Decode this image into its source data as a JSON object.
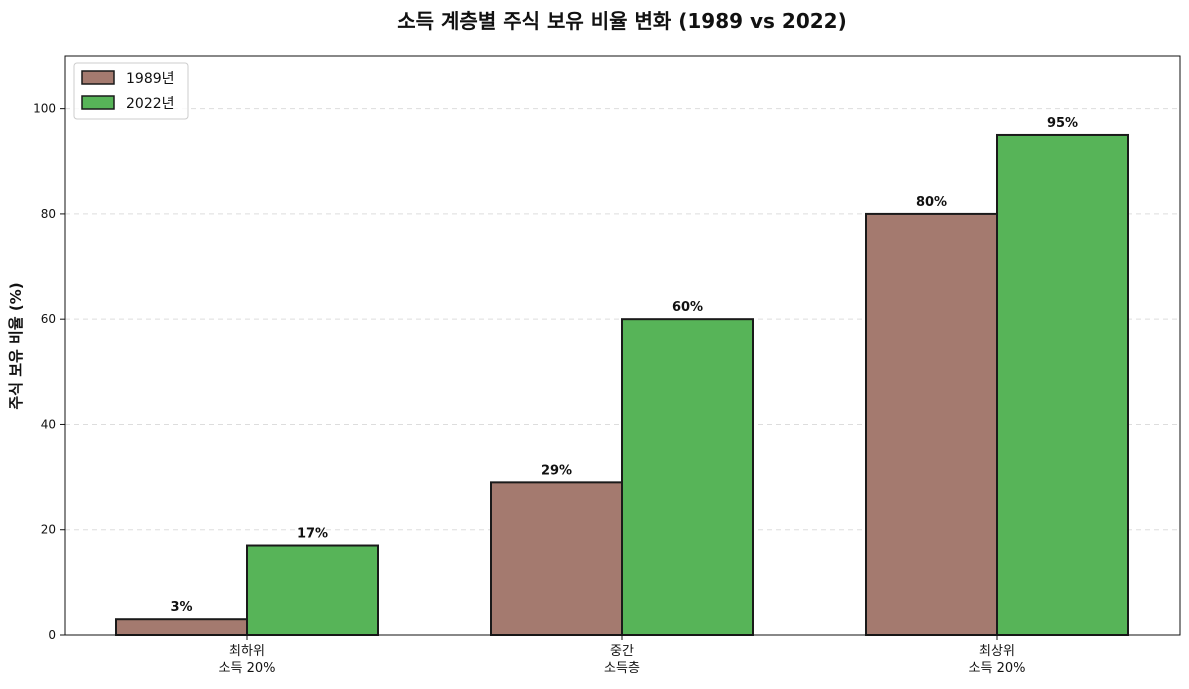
{
  "chart_data": {
    "type": "bar",
    "title": "소득 계층별 주식 보유 비율 변화 (1989 vs 2022)",
    "ylabel": "주식 보유 비율 (%)",
    "xlabel": "",
    "ylim": [
      0,
      110
    ],
    "yticks": [
      0,
      20,
      40,
      60,
      80,
      100
    ],
    "grid": true,
    "legend_position": "top-left",
    "categories": [
      [
        "최하위",
        "소득 20%"
      ],
      [
        "중간",
        "소득층"
      ],
      [
        "최상위",
        "소득 20%"
      ]
    ],
    "series": [
      {
        "name": "1989년",
        "color": "#a47a6f",
        "values": [
          3,
          29,
          80
        ],
        "labels": [
          "3%",
          "29%",
          "80%"
        ]
      },
      {
        "name": "2022년",
        "color": "#57b458",
        "values": [
          17,
          60,
          95
        ],
        "labels": [
          "17%",
          "60%",
          "95%"
        ]
      }
    ]
  }
}
